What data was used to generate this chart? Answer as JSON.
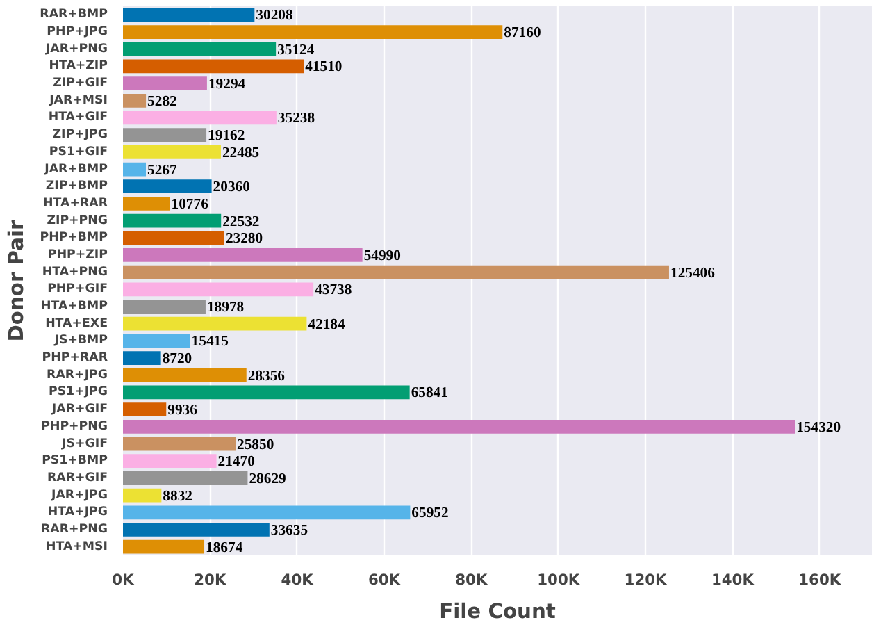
{
  "chart_data": {
    "type": "bar",
    "orientation": "horizontal",
    "xlabel": "File Count",
    "ylabel": "Donor Pair",
    "categories": [
      "RAR+BMP",
      "PHP+JPG",
      "JAR+PNG",
      "HTA+ZIP",
      "ZIP+GIF",
      "JAR+MSI",
      "HTA+GIF",
      "ZIP+JPG",
      "PS1+GIF",
      "JAR+BMP",
      "ZIP+BMP",
      "HTA+RAR",
      "ZIP+PNG",
      "PHP+BMP",
      "PHP+ZIP",
      "HTA+PNG",
      "PHP+GIF",
      "HTA+BMP",
      "HTA+EXE",
      "JS+BMP",
      "PHP+RAR",
      "RAR+JPG",
      "PS1+JPG",
      "JAR+GIF",
      "PHP+PNG",
      "JS+GIF",
      "PS1+BMP",
      "RAR+GIF",
      "JAR+JPG",
      "HTA+JPG",
      "RAR+PNG",
      "HTA+MSI"
    ],
    "values": [
      30208,
      87160,
      35124,
      41510,
      19294,
      5282,
      35238,
      19162,
      22485,
      5267,
      20360,
      10776,
      22532,
      23280,
      54990,
      125406,
      43738,
      18978,
      42184,
      15415,
      8720,
      28356,
      65841,
      9936,
      154320,
      25850,
      21470,
      28629,
      8832,
      65952,
      33635,
      18674
    ],
    "colors": [
      "#0173b2",
      "#de8f05",
      "#029e73",
      "#d55e00",
      "#cc78bc",
      "#ca9161",
      "#fbafe4",
      "#949494",
      "#ece133",
      "#56b4e9",
      "#0173b2",
      "#de8f05",
      "#029e73",
      "#d55e00",
      "#cc78bc",
      "#ca9161",
      "#fbafe4",
      "#949494",
      "#ece133",
      "#56b4e9",
      "#0173b2",
      "#de8f05",
      "#029e73",
      "#d55e00",
      "#cc78bc",
      "#ca9161",
      "#fbafe4",
      "#949494",
      "#ece133",
      "#56b4e9",
      "#0173b2",
      "#de8f05"
    ],
    "xlim": [
      0,
      172000
    ],
    "xticks": [
      {
        "value": 0,
        "label": "0K"
      },
      {
        "value": 20000,
        "label": "20K"
      },
      {
        "value": 40000,
        "label": "40K"
      },
      {
        "value": 60000,
        "label": "60K"
      },
      {
        "value": 80000,
        "label": "80K"
      },
      {
        "value": 100000,
        "label": "100K"
      },
      {
        "value": 120000,
        "label": "120K"
      },
      {
        "value": 140000,
        "label": "140K"
      },
      {
        "value": 160000,
        "label": "160K"
      }
    ],
    "grid": "x",
    "data_labels": true
  }
}
